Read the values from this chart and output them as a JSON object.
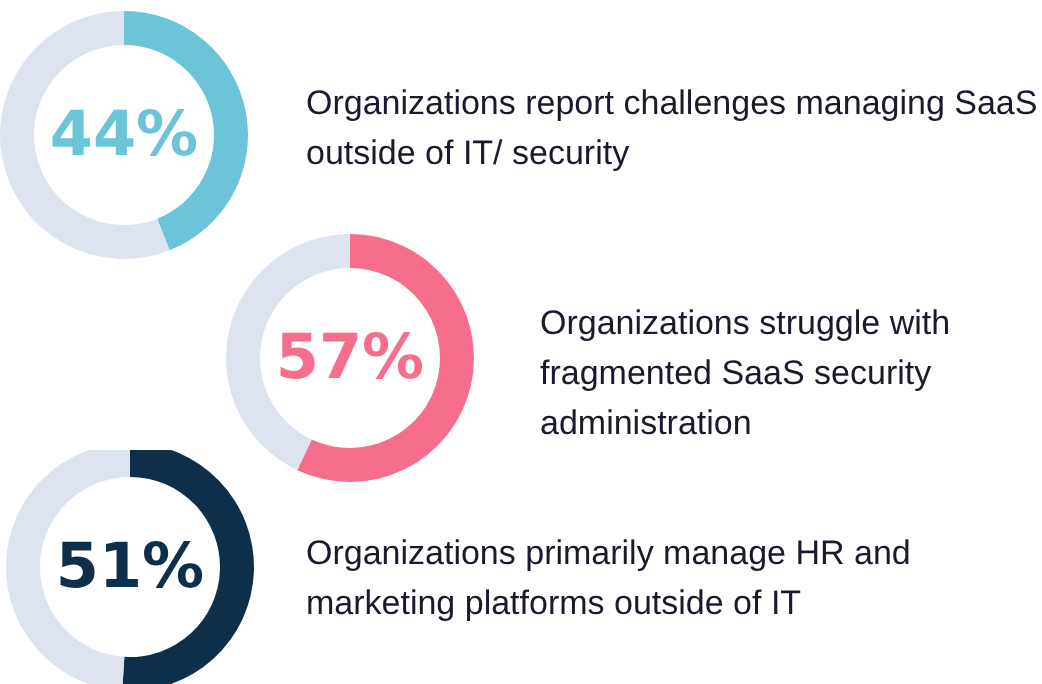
{
  "chart_data": [
    {
      "type": "donut",
      "title": "Organizations report challenges managing SaaS outside of IT/ security",
      "categories": [
        null,
        null
      ],
      "values": [
        44,
        56
      ],
      "colors": [
        "#6cc4d8",
        "#dde3ef"
      ],
      "value_labels": [
        "44%",
        null
      ]
    },
    {
      "type": "donut",
      "title": "Organizations struggle with fragmented SaaS security administration",
      "categories": [
        null,
        null
      ],
      "values": [
        57,
        43
      ],
      "colors": [
        "#f76d8c",
        "#dde3ef"
      ],
      "value_labels": [
        "57%",
        null
      ]
    },
    {
      "type": "donut",
      "title": "Organizations primarily manage HR and marketing platforms outside of IT",
      "categories": [
        null,
        null
      ],
      "values": [
        51,
        49
      ],
      "colors": [
        "#0e2f4a",
        "#dde3ef"
      ],
      "value_labels": [
        "51%",
        null
      ]
    }
  ]
}
